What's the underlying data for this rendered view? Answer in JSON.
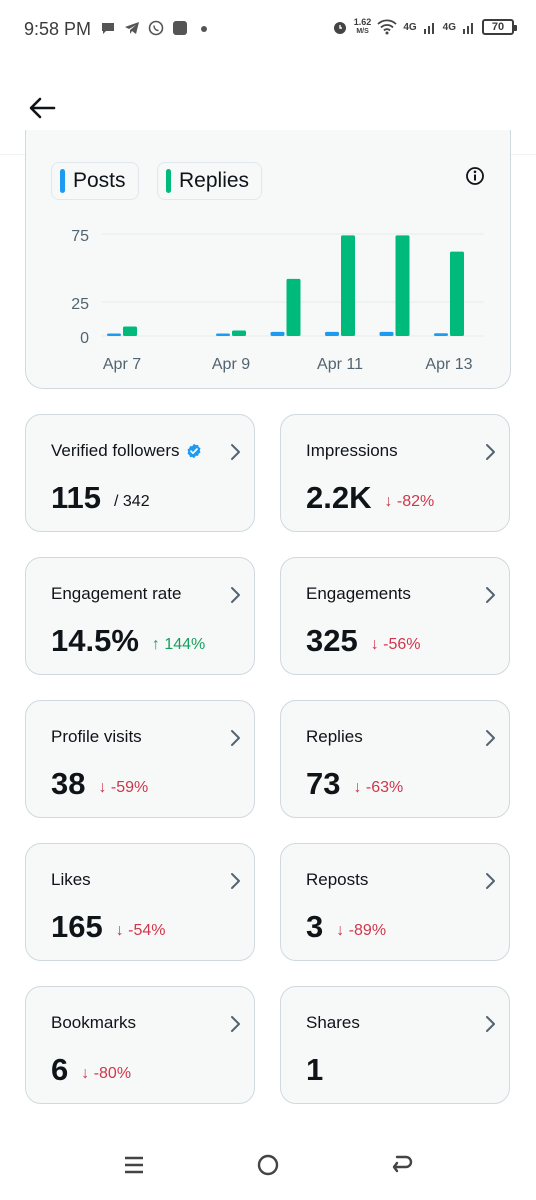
{
  "status_bar": {
    "time": "9:58 PM",
    "speed_value": "1.62",
    "speed_unit": "M/S",
    "net1": "4G",
    "net2": "4G",
    "battery": "70"
  },
  "chart": {
    "legend": [
      {
        "label": "Posts",
        "color": "#1d9bf0"
      },
      {
        "label": "Replies",
        "color": "#00ba7c"
      }
    ]
  },
  "chart_data": {
    "type": "bar",
    "categories": [
      "Apr 7",
      "Apr 8",
      "Apr 9",
      "Apr 10",
      "Apr 11",
      "Apr 12",
      "Apr 13"
    ],
    "x_tick_labels": [
      "Apr 7",
      "Apr 9",
      "Apr 11",
      "Apr 13"
    ],
    "y_tick_labels": [
      "75",
      "25",
      "0"
    ],
    "y_ticks": [
      75,
      25,
      0
    ],
    "ylim": [
      0,
      80
    ],
    "series": [
      {
        "name": "Posts",
        "color": "#1d9bf0",
        "values": [
          1,
          0,
          1,
          3,
          3,
          3,
          2
        ]
      },
      {
        "name": "Replies",
        "color": "#00ba7c",
        "values": [
          7,
          0,
          4,
          42,
          74,
          74,
          62
        ]
      }
    ]
  },
  "stats": [
    {
      "label": "Verified followers",
      "verified_icon": true,
      "value": "115",
      "extra": "/ 342",
      "trend": "neutral"
    },
    {
      "label": "Impressions",
      "value": "2.2K",
      "extra": "↓ -82%",
      "trend": "down"
    },
    {
      "label": "Engagement rate",
      "value": "14.5%",
      "extra": "↑ 144%",
      "trend": "up"
    },
    {
      "label": "Engagements",
      "value": "325",
      "extra": "↓ -56%",
      "trend": "down"
    },
    {
      "label": "Profile visits",
      "value": "38",
      "extra": "↓ -59%",
      "trend": "down"
    },
    {
      "label": "Replies",
      "value": "73",
      "extra": "↓ -63%",
      "trend": "down"
    },
    {
      "label": "Likes",
      "value": "165",
      "extra": "↓ -54%",
      "trend": "down"
    },
    {
      "label": "Reposts",
      "value": "3",
      "extra": "↓ -89%",
      "trend": "down"
    },
    {
      "label": "Bookmarks",
      "value": "6",
      "extra": "↓ -80%",
      "trend": "down"
    },
    {
      "label": "Shares",
      "value": "1",
      "extra": "",
      "trend": "neutral"
    }
  ],
  "colors": {
    "down": "#d0354b",
    "up": "#17a05d",
    "posts": "#1d9bf0",
    "replies": "#00ba7c",
    "verified": "#1d9bf0"
  },
  "icons": {
    "back": "arrow-left-icon",
    "info": "info-icon",
    "chevron": "chevron-right-icon",
    "nav": [
      "recent-apps-icon",
      "home-icon",
      "back-nav-icon"
    ]
  }
}
